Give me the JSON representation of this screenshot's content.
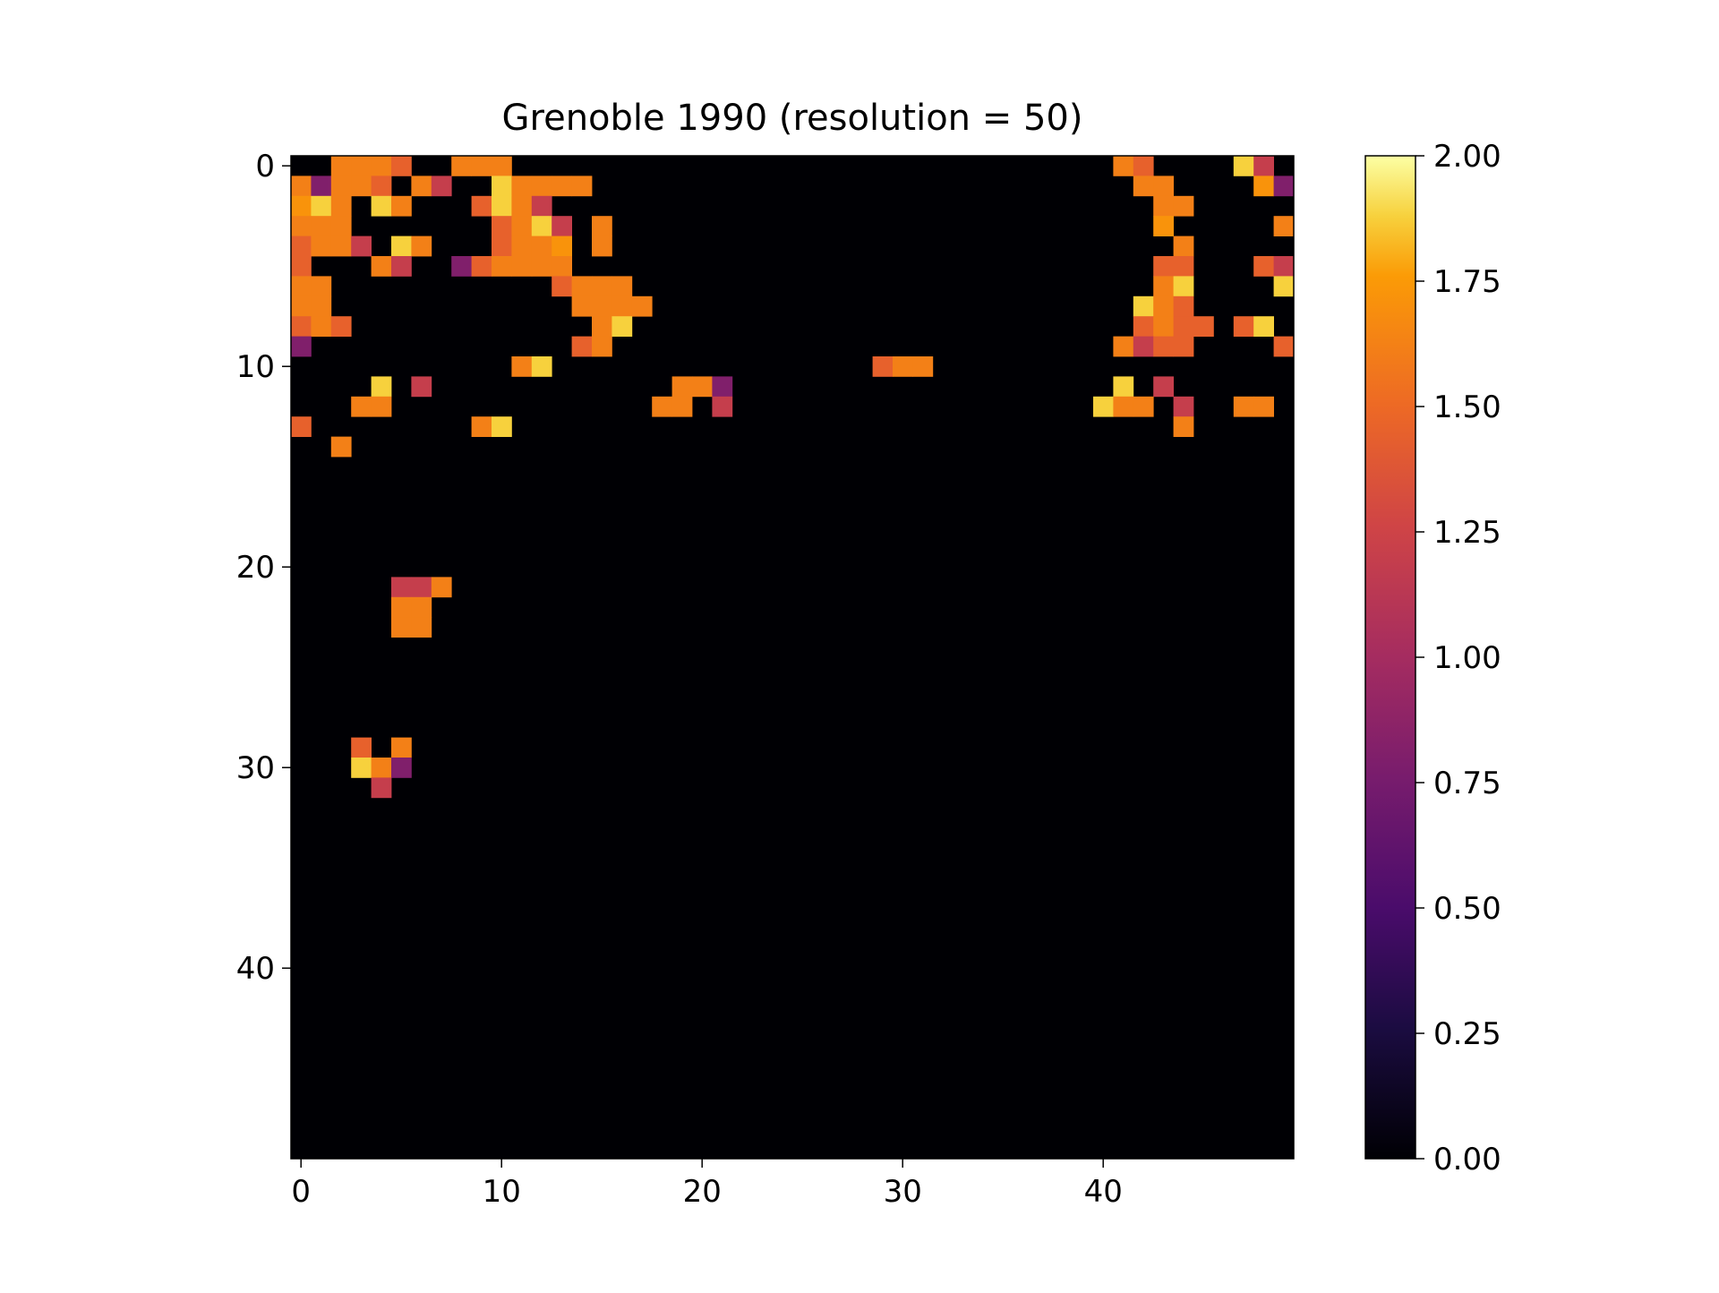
{
  "chart_data": {
    "type": "heatmap",
    "title": "Grenoble 1990 (resolution = 50)",
    "xlabel": "",
    "ylabel": "",
    "rows": 50,
    "cols": 50,
    "x_ticks": [
      0,
      10,
      20,
      30,
      40
    ],
    "y_ticks": [
      0,
      10,
      20,
      30,
      40
    ],
    "colormap": "inferno",
    "vmin": 0,
    "vmax": 2,
    "colorbar_ticks": [
      "0.00",
      "0.25",
      "0.50",
      "0.75",
      "1.00",
      "1.25",
      "1.50",
      "1.75",
      "2.00"
    ],
    "background_value": 0,
    "codes": {
      "D": 0.3,
      "P": 0.8,
      "R": 1.2,
      "O": 1.45,
      "A": 1.62,
      "Y": 1.72,
      "W": 1.88
    },
    "grid": [
      "..AAAO..AAA..............................AO....WR..",
      "APAAO.AR..WAAAA...........................AA....YP",
      "YWA.WA...OWAR..............................AA......",
      "AAA.......OAWR.A...........................Y.....A.",
      "OAAR.WA...OAAY.A............................A.....O.",
      "O...AR..POAAAA.............................OO...OR..",
      "AA...........OAAA..........................AW....WP.",
      "AA............AAAA........................WAO.......",
      "OAO............AW.........................OAOO.OW...",
      "P.............OA.........................AROO....O..",
      "...........AW................OAA.......................",
      "....W.R............AAP...................W.R......AO",
      "...AA.............AA.R..................WAA.R..AA.....",
      "O........AW.................................A.........",
      "..A..........................................",
      "......................................................",
      "........................................................",
      "..............................................",
      "........................................................",
      ".......................................",
      "........................................................",
      ".....RRA.............................................",
      ".....AA.....................................",
      ".....AA..........................",
      "..........................................",
      "...........................",
      "..................................",
      "....................................................",
      "..................................",
      "...O.A..........................................................",
      "...WAP...................................................",
      "....R......................................",
      ".......................................................",
      "....................................................",
      ".........................................",
      "........................................................",
      "..........................................",
      "..........................................",
      "..................................",
      "..................................................",
      "..........................................",
      "..............................",
      "........................................",
      "...................................",
      "..............................",
      "..........................................................",
      "...................................",
      "...............................",
      "..........................................",
      "....................................."
    ]
  }
}
